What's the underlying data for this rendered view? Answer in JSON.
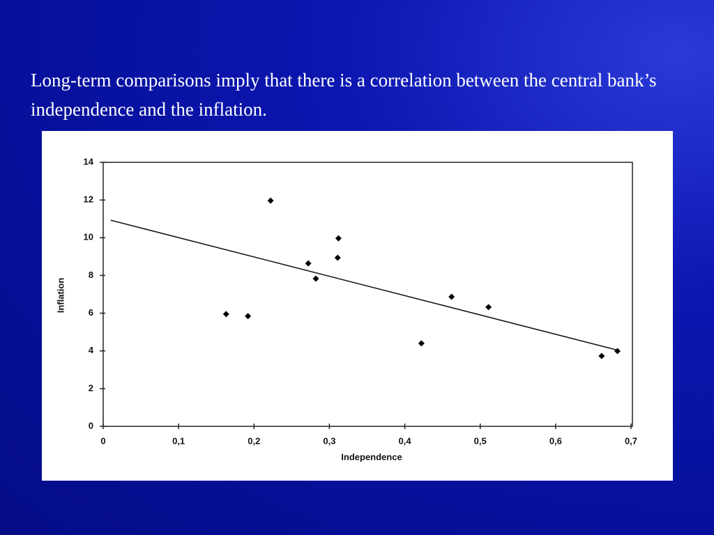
{
  "slide": {
    "text": "Long-term comparisons imply that there is a correlation between the central bank’s independence and the inflation."
  },
  "chart_data": {
    "type": "scatter",
    "x_label": "Independence",
    "y_label": "Inflation",
    "x": [
      0.163,
      0.192,
      0.222,
      0.272,
      0.282,
      0.311,
      0.312,
      0.422,
      0.462,
      0.511,
      0.661,
      0.682
    ],
    "values": [
      5.95,
      5.84,
      11.97,
      8.64,
      7.83,
      8.94,
      9.97,
      4.4,
      6.87,
      6.32,
      3.73,
      3.99
    ],
    "color": "#000000",
    "trendline": {
      "x": [
        0.01,
        0.683
      ],
      "values": [
        10.93,
        4.03
      ]
    },
    "xlim": [
      0,
      0.7
    ],
    "ylim": [
      0,
      14
    ],
    "xticks": [
      0,
      {
        "value": 0.1,
        "label": "0,1"
      },
      {
        "value": 0.2,
        "label": "0,2"
      },
      {
        "value": 0.3,
        "label": "0,3"
      },
      {
        "value": 0.4,
        "label": "0,4"
      },
      {
        "value": 0.5,
        "label": "0,5"
      },
      {
        "value": 0.6,
        "label": "0,6"
      },
      {
        "value": 0.7,
        "label": "0,7"
      }
    ],
    "yticks": [
      0,
      2,
      4,
      6,
      8,
      10,
      12,
      14
    ],
    "grid": false
  }
}
